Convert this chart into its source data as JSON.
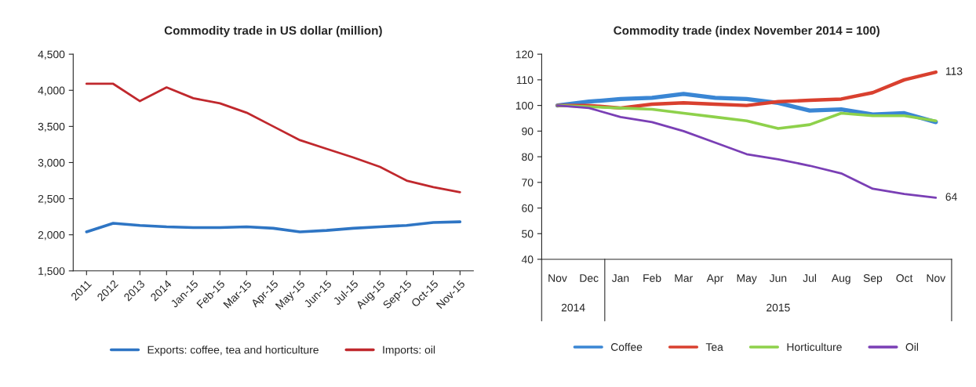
{
  "chart_data": [
    {
      "type": "line",
      "title": "Commodity trade in US dollar (million)",
      "categories": [
        "2011",
        "2012",
        "2013",
        "2014",
        "Jan-15",
        "Feb-15",
        "Mar-15",
        "Apr-15",
        "May-15",
        "Jun-15",
        "Jul-15",
        "Aug-15",
        "Sep-15",
        "Oct-15",
        "Nov-15"
      ],
      "series": [
        {
          "name": "Exports: coffee, tea and horticulture",
          "color": "#2e75c4",
          "values": [
            2040,
            2160,
            2130,
            2110,
            2100,
            2100,
            2110,
            2090,
            2040,
            2060,
            2090,
            2110,
            2130,
            2170,
            2180
          ]
        },
        {
          "name": "Imports: oil",
          "color": "#c0282d",
          "values": [
            4090,
            4090,
            3850,
            4040,
            3890,
            3820,
            3690,
            3500,
            3310,
            3190,
            3070,
            2940,
            2750,
            2660,
            2590
          ]
        }
      ],
      "ylim": [
        1500,
        4500
      ],
      "yticks": [
        {
          "value": 1500,
          "label": "1,500"
        },
        {
          "value": 2000,
          "label": "2,000"
        },
        {
          "value": 2500,
          "label": "2,500"
        },
        {
          "value": 3000,
          "label": "3,000"
        },
        {
          "value": 3500,
          "label": "3,500"
        },
        {
          "value": 4000,
          "label": "4,000"
        },
        {
          "value": 4500,
          "label": "4,500"
        }
      ],
      "legend": "bottom",
      "grid": false
    },
    {
      "type": "line",
      "title": "Commodity trade (index November 2014 = 100)",
      "categories": [
        "Nov",
        "Dec",
        "Jan",
        "Feb",
        "Mar",
        "Apr",
        "May",
        "Jun",
        "Jul",
        "Aug",
        "Sep",
        "Oct",
        "Nov"
      ],
      "series": [
        {
          "name": "Coffee",
          "color": "#3a86d4",
          "values": [
            100,
            101.5,
            102.5,
            103,
            104.5,
            103,
            102.5,
            101,
            98,
            98.5,
            96.5,
            97,
            93.5
          ]
        },
        {
          "name": "Tea",
          "color": "#d9402f",
          "values": [
            100,
            100,
            99,
            100.5,
            101,
            100.5,
            100,
            101.5,
            102,
            102.5,
            105,
            110,
            113
          ],
          "value_labels": [
            null,
            null,
            null,
            null,
            null,
            null,
            null,
            null,
            null,
            null,
            null,
            null,
            "113"
          ]
        },
        {
          "name": "Horticulture",
          "color": "#8ed14b",
          "values": [
            100,
            99.5,
            99,
            98.5,
            97,
            95.5,
            94,
            91,
            92.5,
            97,
            96,
            96,
            94
          ]
        },
        {
          "name": "Oil",
          "color": "#7a3fb5",
          "values": [
            100,
            99,
            95.5,
            93.5,
            90,
            85.5,
            81,
            79,
            76.5,
            73.5,
            67.5,
            65.5,
            64
          ],
          "value_labels": [
            null,
            null,
            null,
            null,
            null,
            null,
            null,
            null,
            null,
            null,
            null,
            null,
            "64"
          ]
        }
      ],
      "ylim": [
        40,
        120
      ],
      "yticks": [
        40,
        50,
        60,
        70,
        80,
        90,
        100,
        110,
        120
      ],
      "annotations": [
        "2014",
        "2015"
      ],
      "legend": "bottom",
      "grid": false
    }
  ]
}
